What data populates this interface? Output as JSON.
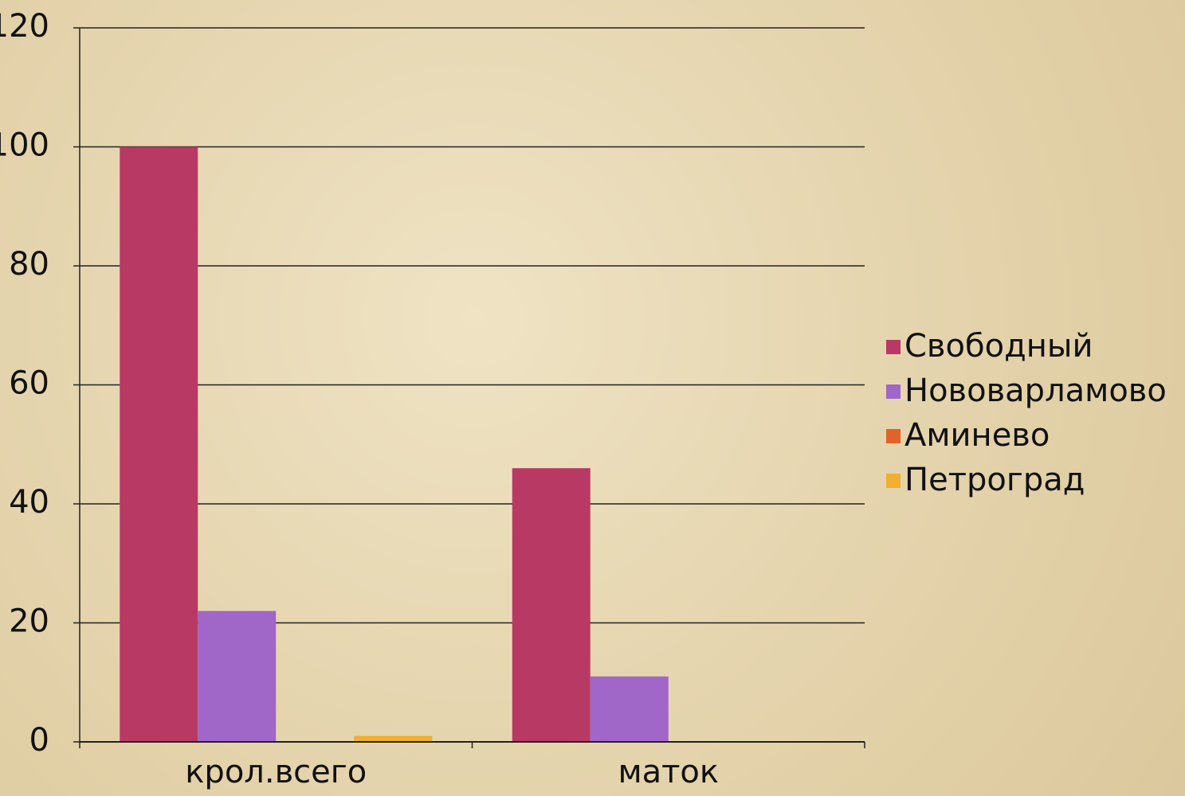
{
  "chart_data": {
    "type": "bar",
    "categories": [
      "крол.всего",
      "маток"
    ],
    "series": [
      {
        "name": "Свободный",
        "color": "#b83a64",
        "values": [
          100,
          46
        ]
      },
      {
        "name": "Нововарламово",
        "color": "#a066c8",
        "values": [
          22,
          11
        ]
      },
      {
        "name": "Аминево",
        "color": "#e0642a",
        "values": [
          0,
          0
        ]
      },
      {
        "name": "Петроград",
        "color": "#f0b030",
        "values": [
          1,
          0
        ]
      }
    ],
    "ylim": [
      0,
      120
    ],
    "yticks": [
      0,
      20,
      40,
      60,
      80,
      100,
      120
    ],
    "grid": true,
    "legend": "right"
  }
}
